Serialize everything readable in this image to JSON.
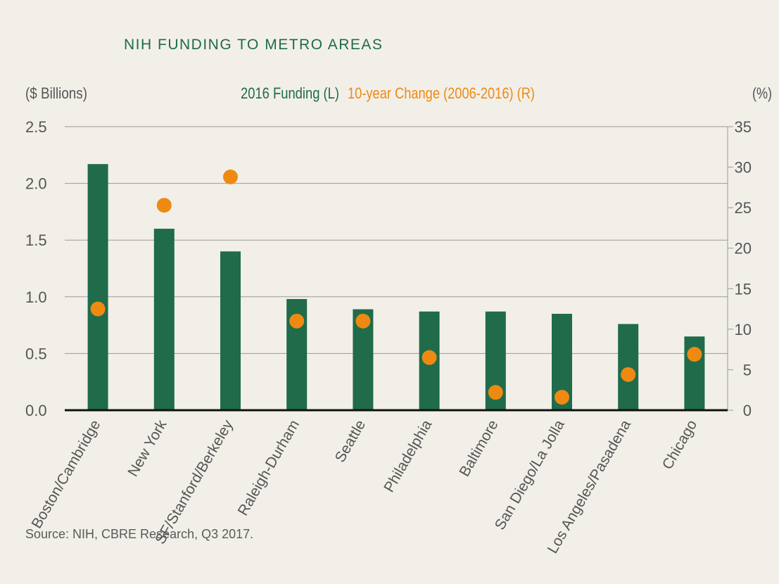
{
  "title": "NIH FUNDING TO METRO AREAS",
  "source": "Source: NIH, CBRE Research, Q3 2017.",
  "colors": {
    "bar": "#1f6b4a",
    "dot": "#ee8a12",
    "title": "#1f6b4a",
    "grid": "#9a9a9a"
  },
  "chart_data": {
    "type": "bar",
    "title": "NIH FUNDING TO METRO AREAS",
    "ylabel_left": "($ Billions)",
    "ylabel_right": "(%)",
    "categories": [
      "Boston/Cambridge",
      "New York",
      "SF/Stanford/Berkeley",
      "Raleigh-Durham",
      "Seattle",
      "Philadelphia",
      "Baltimore",
      "San Diego/La Jolla",
      "Los Angeles/Pasadena",
      "Chicago"
    ],
    "series": [
      {
        "name": "2016 Funding (L)",
        "type": "bar",
        "axis": "left",
        "values": [
          2.17,
          1.6,
          1.4,
          0.98,
          0.89,
          0.87,
          0.87,
          0.85,
          0.76,
          0.65
        ]
      },
      {
        "name": "10-year Change (2006-2016) (R)",
        "type": "scatter",
        "axis": "right",
        "values": [
          12.5,
          25.3,
          28.8,
          11.0,
          11.0,
          6.5,
          2.2,
          1.6,
          4.4,
          6.9
        ]
      }
    ],
    "ylim_left": [
      0,
      2.5
    ],
    "ylim_right": [
      0,
      35
    ],
    "yticks_left": [
      "0.0",
      "0.5",
      "1.0",
      "1.5",
      "2.0",
      "2.5"
    ],
    "yticks_right": [
      "0",
      "5",
      "10",
      "15",
      "20",
      "25",
      "30",
      "35"
    ],
    "grid": true,
    "legend": "top-center"
  }
}
